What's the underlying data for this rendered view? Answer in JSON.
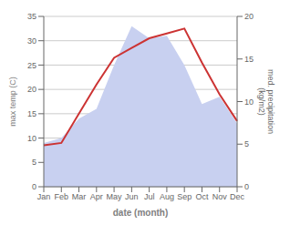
{
  "chart_data": {
    "type": "line",
    "xlabel": "date (month)",
    "ylabel": "max temp (C)",
    "y2label": "med. precipitation\n(kg/m2)",
    "categories": [
      "Jan",
      "Feb",
      "Mar",
      "Apr",
      "May",
      "Jun",
      "Jul",
      "Aug",
      "Sep",
      "Oct",
      "Nov",
      "Dec"
    ],
    "series": [
      {
        "type": "area",
        "color": "#c8d0f0",
        "values": [
          9.0,
          10.0,
          14.0,
          16.0,
          25.0,
          33.0,
          30.5,
          31.0,
          25.0,
          17.0,
          18.5,
          13.0
        ]
      },
      {
        "type": "line",
        "color": "#cc3333",
        "values": [
          8.5,
          9.0,
          15.0,
          21.0,
          26.5,
          28.5,
          30.5,
          31.5,
          32.5,
          25.5,
          19.0,
          13.5
        ]
      }
    ],
    "ylim": [
      0,
      35
    ],
    "yticks": [
      0,
      5,
      10,
      15,
      20,
      25,
      30,
      35
    ],
    "y2lim": [
      0,
      20
    ],
    "y2ticks": [
      0,
      5,
      10,
      15,
      20
    ],
    "grid": true
  }
}
